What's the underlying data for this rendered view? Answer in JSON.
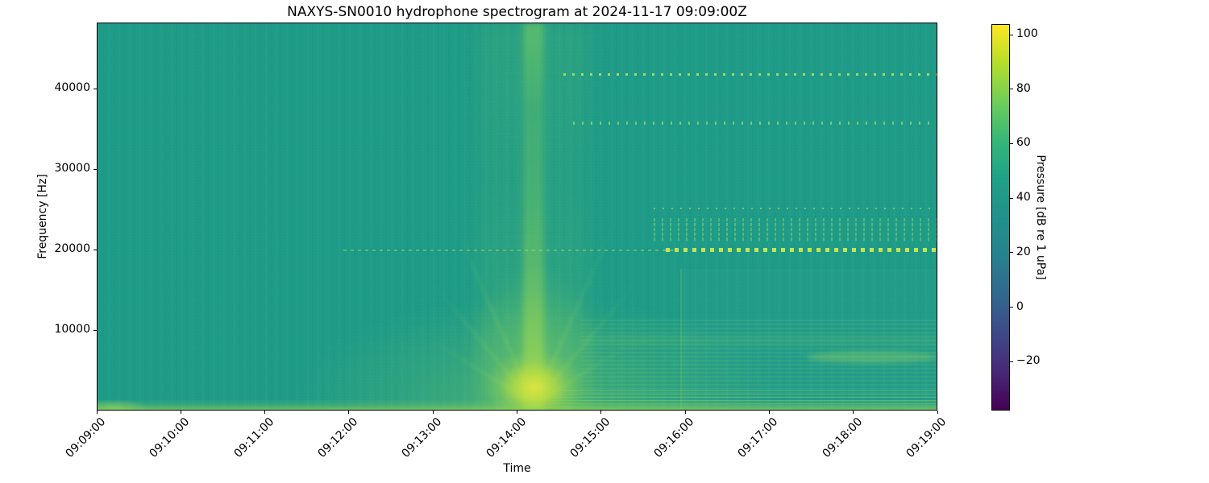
{
  "figure": {
    "title": "NAXYS-SN0010 hydrophone spectrogram at 2024-11-17 09:09:00Z"
  },
  "axes": {
    "xlabel": "Time",
    "ylabel": "Frequency [Hz]",
    "x_tick_labels": [
      "09:09:00",
      "09:10:00",
      "09:11:00",
      "09:12:00",
      "09:13:00",
      "09:14:00",
      "09:15:00",
      "09:16:00",
      "09:17:00",
      "09:18:00",
      "09:19:00"
    ],
    "y_tick_values": [
      10000,
      20000,
      30000,
      40000
    ],
    "y_tick_labels": [
      "10000",
      "20000",
      "30000",
      "40000"
    ]
  },
  "colorbar": {
    "label": "Pressure [dB re 1 uPa]",
    "tick_values": [
      100,
      80,
      60,
      40,
      20,
      0,
      -20
    ],
    "tick_labels": [
      "100",
      "80",
      "60",
      "40",
      "20",
      "0",
      "−20"
    ],
    "colormap": "viridis",
    "gradient_stops": [
      "#440154",
      "#482878",
      "#3e4a89",
      "#31688e",
      "#26828e",
      "#21918c",
      "#1fa188",
      "#35b779",
      "#6ece58",
      "#b5de2b",
      "#fde725"
    ]
  },
  "chart_data": {
    "type": "heatmap",
    "subtype": "spectrogram",
    "title": "NAXYS-SN0010 hydrophone spectrogram at 2024-11-17 09:09:00Z",
    "xlabel": "Time",
    "ylabel": "Frequency [Hz]",
    "x_range": [
      "09:09:00",
      "09:19:00"
    ],
    "y_range_hz": [
      0,
      48200
    ],
    "value_label": "Pressure [dB re 1 uPa]",
    "value_range_db": [
      -38,
      104
    ],
    "colormap": "viridis",
    "background_level_db": 52,
    "background_color_hex": "#1f9c88",
    "features": [
      {
        "name": "broadband-transient",
        "description": "V-shaped broadband plume from vessel close approach; spans full band, brightest below ~5000 Hz",
        "time_center": "09:14:10",
        "time_span": [
          "09:13:30",
          "09:15:00"
        ],
        "freq_range_hz": [
          0,
          48200
        ],
        "peak_db": 95
      },
      {
        "name": "low-freq-noise-band",
        "description": "elevated noise strip at bottom of band for entire record",
        "freq_range_hz": [
          0,
          1300
        ],
        "time_span": [
          "09:09:00",
          "09:19:00"
        ],
        "level_db": 65
      },
      {
        "name": "echosounder-pings-41700",
        "description": "periodic dashed ping line",
        "freq_hz": 41700,
        "time_span": [
          "09:14:30",
          "09:19:00"
        ],
        "period_s": 6,
        "level_db": 72
      },
      {
        "name": "echosounder-pings-35700",
        "description": "periodic dashed ping line",
        "freq_hz": 35700,
        "time_span": [
          "09:14:40",
          "09:19:00"
        ],
        "period_s": 6,
        "level_db": 66
      },
      {
        "name": "pings-25300",
        "description": "faint dotted line",
        "freq_hz": 25300,
        "time_span": [
          "09:15:45",
          "09:19:00"
        ],
        "level_db": 60
      },
      {
        "name": "dotted-band-21000-24000",
        "description": "speckled dot band",
        "freq_range_hz": [
          21000,
          24000
        ],
        "time_span": [
          "09:15:45",
          "09:19:00"
        ],
        "level_db": 58
      },
      {
        "name": "pings-20000",
        "description": "dashed line, faint from 09:12, strong chevrons after 09:15:45",
        "freq_hz": 20000,
        "time_span": [
          "09:12:00",
          "09:19:00"
        ],
        "level_db": 75
      },
      {
        "name": "striation-block",
        "description": "fine horizontal striations and slightly elevated levels below ~17000 Hz after closest approach",
        "freq_range_hz": [
          0,
          17000
        ],
        "time_span": [
          "09:16:00",
          "09:19:00"
        ],
        "level_db": 56
      },
      {
        "name": "band-6000-7000",
        "description": "brighter narrowband patch",
        "freq_range_hz": [
          5900,
          7400
        ],
        "time_span": [
          "09:17:30",
          "09:19:00"
        ],
        "level_db": 62
      }
    ]
  }
}
